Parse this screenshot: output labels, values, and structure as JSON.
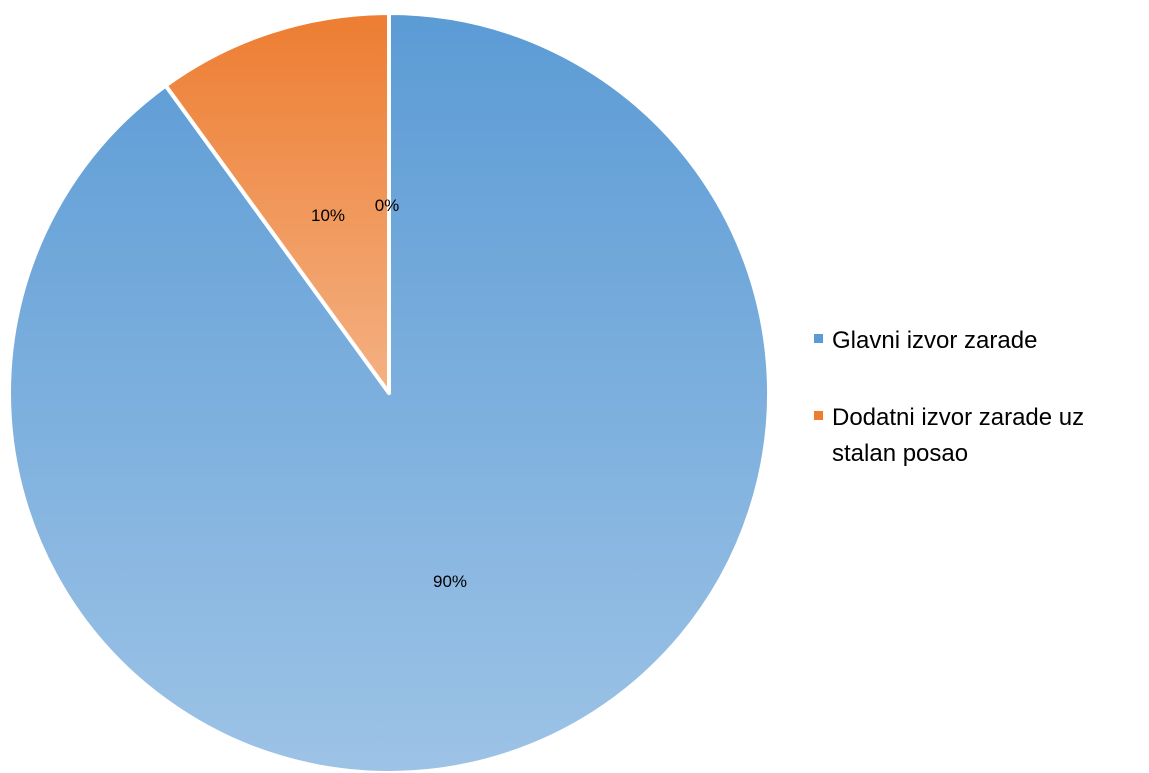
{
  "chart_data": {
    "type": "pie",
    "title": "",
    "slices": [
      {
        "label": "Glavni izvor zarade",
        "value": 90,
        "color": "#5b9bd5",
        "color_light": "#9dc3e6"
      },
      {
        "label": "Dodatni izvor zarade uz stalan posao",
        "value": 10,
        "color": "#ed7d31",
        "color_light": "#f4b183"
      },
      {
        "label": "",
        "value": 0,
        "color": "#a5a5a5",
        "color_light": "#d0d0d0"
      }
    ],
    "data_labels": [
      "90%",
      "10%",
      "0%"
    ],
    "legend": {
      "position": "right",
      "items": [
        {
          "label_line1": "Glavni izvor zarade",
          "label_line2": "",
          "color": "#5b9bd5"
        },
        {
          "label_line1": "Dodatni izvor zarade uz",
          "label_line2": "stalan posao",
          "color": "#ed7d31"
        }
      ]
    }
  }
}
